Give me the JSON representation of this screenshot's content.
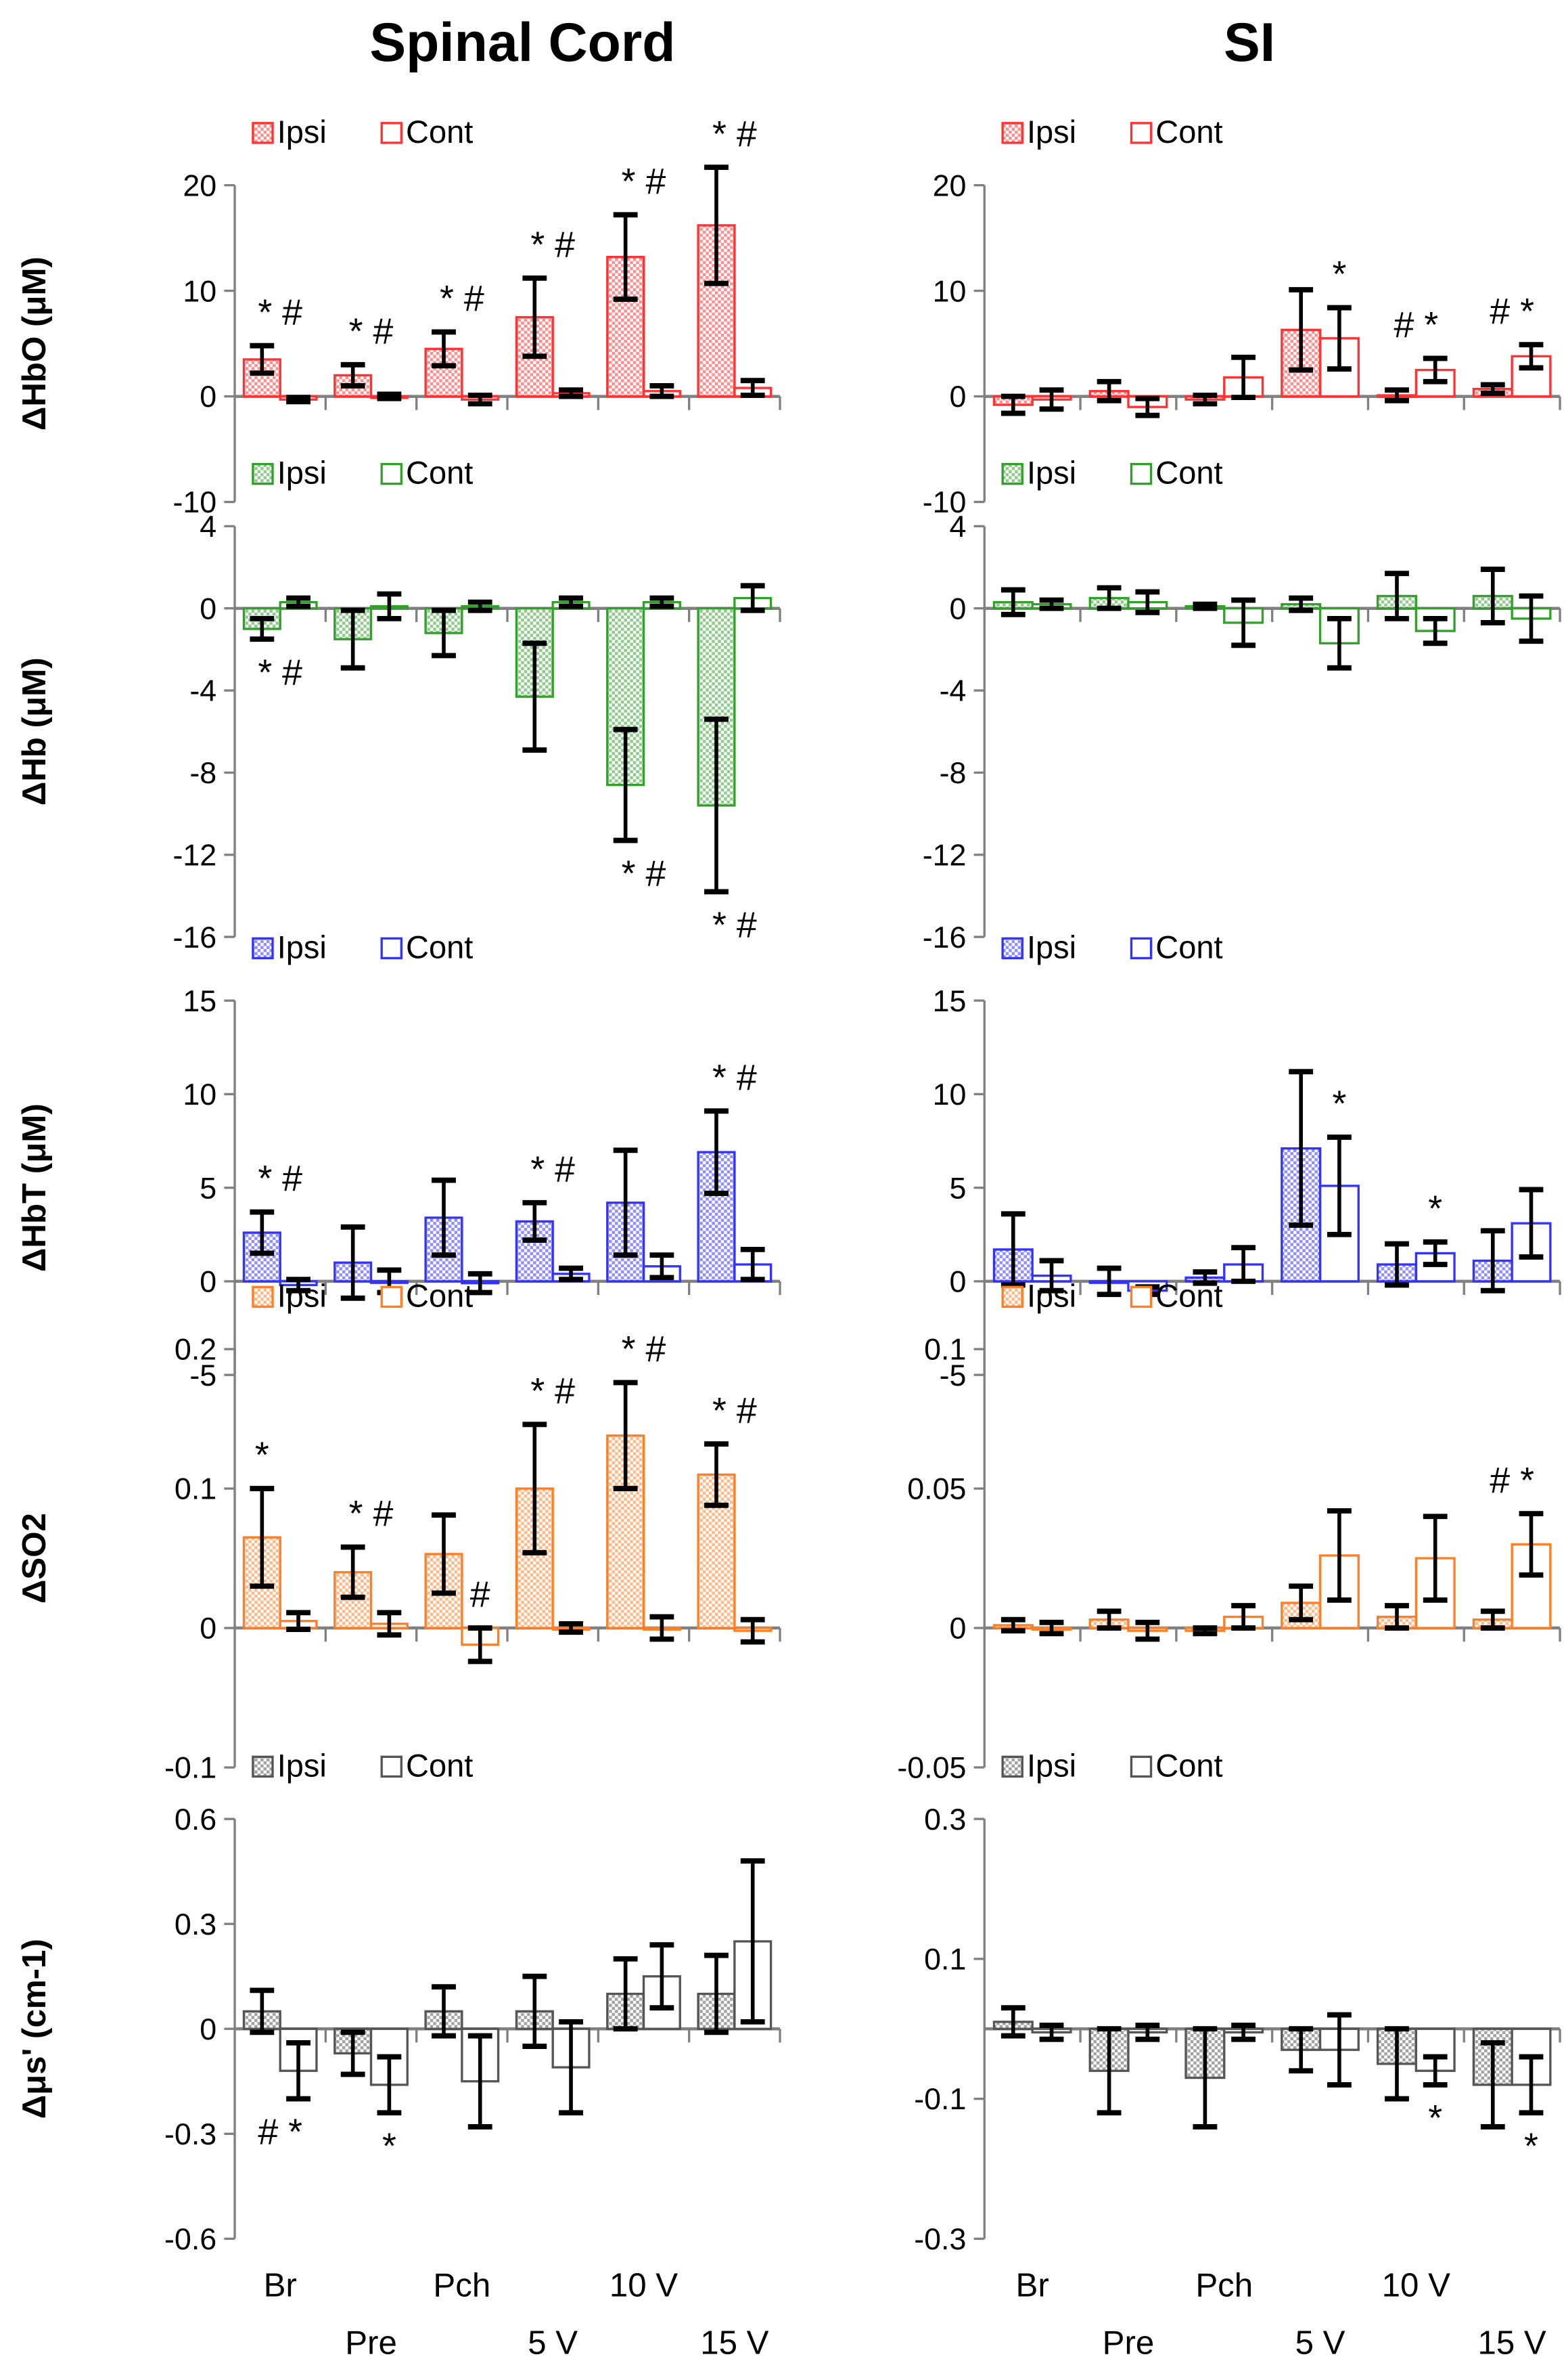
{
  "titles": {
    "left": "Spinal Cord",
    "right": "SI"
  },
  "legend": {
    "ipsi": "Ipsi",
    "cont": "Cont"
  },
  "categories": [
    "Br",
    "Pre",
    "Pch",
    "5 V",
    "10 V",
    "15 V"
  ],
  "colors": {
    "hbo": "#ff3333",
    "hb": "#33a02c",
    "hbt": "#3333ff",
    "so2": "#ff7f27",
    "mus": "#555555",
    "error": "#000000",
    "axis": "#808080"
  },
  "chart_data": [
    {
      "type": "bar",
      "id": "hbo-sc",
      "region": "Spinal Cord",
      "ylabel": "ΔHbO (μM)",
      "color_key": "hbo",
      "ylim": [
        -10,
        20
      ],
      "yticks": [
        20,
        10,
        0,
        -10
      ],
      "tick_labels": [
        "20",
        "10",
        "0",
        "-10"
      ],
      "categories": [
        "Br",
        "Pre",
        "Pch",
        "5 V",
        "10 V",
        "15 V"
      ],
      "series": [
        {
          "name": "Ipsi",
          "values": [
            3.5,
            2.0,
            4.5,
            7.5,
            13.2,
            16.2
          ],
          "errors": [
            1.3,
            1.0,
            1.6,
            3.7,
            4.0,
            5.5
          ]
        },
        {
          "name": "Cont",
          "values": [
            -0.3,
            0.0,
            -0.3,
            0.3,
            0.5,
            0.8
          ],
          "errors": [
            0.2,
            0.2,
            0.4,
            0.3,
            0.5,
            0.7
          ]
        }
      ],
      "annotations": [
        {
          "group": 0,
          "text": "* #",
          "pos": "above"
        },
        {
          "group": 1,
          "text": "* #",
          "pos": "above"
        },
        {
          "group": 2,
          "text": "* #",
          "pos": "above"
        },
        {
          "group": 3,
          "text": "* #",
          "pos": "above"
        },
        {
          "group": 4,
          "text": "* #",
          "pos": "above"
        },
        {
          "group": 5,
          "text": "* #",
          "pos": "above"
        }
      ]
    },
    {
      "type": "bar",
      "id": "hbo-si",
      "region": "SI",
      "ylabel": "",
      "color_key": "hbo",
      "ylim": [
        -10,
        20
      ],
      "yticks": [
        20,
        10,
        0,
        -10
      ],
      "tick_labels": [
        "20",
        "10",
        "0",
        "-10"
      ],
      "categories": [
        "Br",
        "Pre",
        "Pch",
        "5 V",
        "10 V",
        "15 V"
      ],
      "series": [
        {
          "name": "Ipsi",
          "values": [
            -0.8,
            0.5,
            -0.3,
            6.3,
            0.1,
            0.7
          ],
          "errors": [
            0.8,
            0.9,
            0.4,
            3.8,
            0.5,
            0.4
          ]
        },
        {
          "name": "Cont",
          "values": [
            -0.3,
            -1.0,
            1.8,
            5.5,
            2.5,
            3.8
          ],
          "errors": [
            0.9,
            0.8,
            1.9,
            2.9,
            1.1,
            1.1
          ]
        }
      ],
      "annotations": [
        {
          "group": 3,
          "text": "*",
          "pos": "above-cont"
        },
        {
          "group": 4,
          "text": "# *",
          "pos": "above"
        },
        {
          "group": 5,
          "text": "# *",
          "pos": "above"
        }
      ]
    },
    {
      "type": "bar",
      "id": "hb-sc",
      "region": "Spinal Cord",
      "ylabel": "ΔHb (μM)",
      "color_key": "hb",
      "ylim": [
        -16,
        4
      ],
      "yticks": [
        4,
        0,
        -4,
        -8,
        -12,
        -16
      ],
      "tick_labels": [
        "4",
        "0",
        "-4",
        "-8",
        "-12",
        "-16"
      ],
      "categories": [
        "Br",
        "Pre",
        "Pch",
        "5 V",
        "10 V",
        "15 V"
      ],
      "series": [
        {
          "name": "Ipsi",
          "values": [
            -1.0,
            -1.5,
            -1.2,
            -4.3,
            -8.6,
            -9.6
          ],
          "errors": [
            0.5,
            1.4,
            1.1,
            2.6,
            2.7,
            4.2
          ]
        },
        {
          "name": "Cont",
          "values": [
            0.3,
            0.1,
            0.1,
            0.3,
            0.3,
            0.5
          ],
          "errors": [
            0.2,
            0.6,
            0.2,
            0.2,
            0.2,
            0.6
          ]
        }
      ],
      "annotations": [
        {
          "group": 0,
          "text": "* #",
          "pos": "below"
        },
        {
          "group": 4,
          "text": "* #",
          "pos": "below"
        },
        {
          "group": 5,
          "text": "* #",
          "pos": "below"
        }
      ]
    },
    {
      "type": "bar",
      "id": "hb-si",
      "region": "SI",
      "ylabel": "",
      "color_key": "hb",
      "ylim": [
        -16,
        4
      ],
      "yticks": [
        4,
        0,
        -4,
        -8,
        -12,
        -16
      ],
      "tick_labels": [
        "4",
        "0",
        "-4",
        "-8",
        "-12",
        "-16"
      ],
      "categories": [
        "Br",
        "Pre",
        "Pch",
        "5 V",
        "10 V",
        "15 V"
      ],
      "series": [
        {
          "name": "Ipsi",
          "values": [
            0.3,
            0.5,
            0.1,
            0.2,
            0.6,
            0.6
          ],
          "errors": [
            0.6,
            0.5,
            0.1,
            0.3,
            1.1,
            1.3
          ]
        },
        {
          "name": "Cont",
          "values": [
            0.2,
            0.3,
            -0.7,
            -1.7,
            -1.1,
            -0.5
          ],
          "errors": [
            0.2,
            0.5,
            1.1,
            1.2,
            0.6,
            1.1
          ]
        }
      ],
      "annotations": []
    },
    {
      "type": "bar",
      "id": "hbt-sc",
      "region": "Spinal Cord",
      "ylabel": "ΔHbT (μM)",
      "color_key": "hbt",
      "ylim": [
        -5,
        15
      ],
      "yticks": [
        15,
        10,
        5,
        0,
        -5
      ],
      "tick_labels": [
        "15",
        "10",
        "5",
        "0",
        "-5"
      ],
      "categories": [
        "Br",
        "Pre",
        "Pch",
        "5 V",
        "10 V",
        "15 V"
      ],
      "series": [
        {
          "name": "Ipsi",
          "values": [
            2.6,
            1.0,
            3.4,
            3.2,
            4.2,
            6.9
          ],
          "errors": [
            1.1,
            1.9,
            2.0,
            1.0,
            2.8,
            2.2
          ]
        },
        {
          "name": "Cont",
          "values": [
            -0.2,
            0.0,
            -0.1,
            0.4,
            0.8,
            0.9
          ],
          "errors": [
            0.3,
            0.6,
            0.5,
            0.3,
            0.6,
            0.8
          ]
        }
      ],
      "annotations": [
        {
          "group": 0,
          "text": "* #",
          "pos": "above"
        },
        {
          "group": 3,
          "text": "* #",
          "pos": "above"
        },
        {
          "group": 5,
          "text": "* #",
          "pos": "above"
        }
      ]
    },
    {
      "type": "bar",
      "id": "hbt-si",
      "region": "SI",
      "ylabel": "",
      "color_key": "hbt",
      "ylim": [
        -5,
        15
      ],
      "yticks": [
        15,
        10,
        5,
        0,
        -5
      ],
      "tick_labels": [
        "15",
        "10",
        "5",
        "0",
        "-5"
      ],
      "categories": [
        "Br",
        "Pre",
        "Pch",
        "5 V",
        "10 V",
        "15 V"
      ],
      "series": [
        {
          "name": "Ipsi",
          "values": [
            1.7,
            0.0,
            0.2,
            7.1,
            0.9,
            1.1
          ],
          "errors": [
            1.9,
            0.7,
            0.3,
            4.1,
            1.1,
            1.6
          ]
        },
        {
          "name": "Cont",
          "values": [
            0.3,
            -0.5,
            0.9,
            5.1,
            1.5,
            3.1
          ],
          "errors": [
            0.8,
            0.2,
            0.9,
            2.6,
            0.6,
            1.8
          ]
        }
      ],
      "annotations": [
        {
          "group": 3,
          "text": "*",
          "pos": "above-cont"
        },
        {
          "group": 4,
          "text": "*",
          "pos": "above-cont"
        }
      ]
    },
    {
      "type": "bar",
      "id": "so2-sc",
      "region": "Spinal Cord",
      "ylabel": "ΔSO2",
      "color_key": "so2",
      "ylim": [
        -0.1,
        0.2
      ],
      "yticks": [
        0.2,
        0.1,
        0,
        -0.1
      ],
      "tick_labels": [
        "0.2",
        "0.1",
        "0",
        "-0.1"
      ],
      "categories": [
        "Br",
        "Pre",
        "Pch",
        "5 V",
        "10 V",
        "15 V"
      ],
      "series": [
        {
          "name": "Ipsi",
          "values": [
            0.065,
            0.04,
            0.053,
            0.1,
            0.138,
            0.11
          ],
          "errors": [
            0.035,
            0.018,
            0.028,
            0.046,
            0.038,
            0.022
          ]
        },
        {
          "name": "Cont",
          "values": [
            0.005,
            0.003,
            -0.012,
            0.0,
            0.0,
            -0.002
          ],
          "errors": [
            0.006,
            0.008,
            0.012,
            0.003,
            0.008,
            0.008
          ]
        }
      ],
      "annotations": [
        {
          "group": 0,
          "text": "*",
          "pos": "above-ipsi"
        },
        {
          "group": 1,
          "text": "* #",
          "pos": "above"
        },
        {
          "group": 2,
          "text": "#",
          "pos": "above-cont"
        },
        {
          "group": 3,
          "text": "* #",
          "pos": "above"
        },
        {
          "group": 4,
          "text": "* #",
          "pos": "above"
        },
        {
          "group": 5,
          "text": "* #",
          "pos": "above"
        }
      ]
    },
    {
      "type": "bar",
      "id": "so2-si",
      "region": "SI",
      "ylabel": "",
      "color_key": "so2",
      "ylim": [
        -0.05,
        0.1
      ],
      "yticks": [
        0.1,
        0.05,
        0,
        -0.05
      ],
      "tick_labels": [
        "0.1",
        "0.05",
        "0",
        "-0.05"
      ],
      "categories": [
        "Br",
        "Pre",
        "Pch",
        "5 V",
        "10 V",
        "15 V"
      ],
      "series": [
        {
          "name": "Ipsi",
          "values": [
            0.001,
            0.003,
            -0.001,
            0.009,
            0.004,
            0.003
          ],
          "errors": [
            0.002,
            0.003,
            0.001,
            0.006,
            0.004,
            0.003
          ]
        },
        {
          "name": "Cont",
          "values": [
            0.0,
            -0.001,
            0.004,
            0.026,
            0.025,
            0.03
          ],
          "errors": [
            0.002,
            0.003,
            0.004,
            0.016,
            0.015,
            0.011
          ]
        }
      ],
      "annotations": [
        {
          "group": 5,
          "text": "# *",
          "pos": "above"
        }
      ]
    },
    {
      "type": "bar",
      "id": "mus-sc",
      "region": "Spinal Cord",
      "ylabel": "Δμs' (cm-1)",
      "color_key": "mus",
      "ylim": [
        -0.6,
        0.6
      ],
      "yticks": [
        0.6,
        0.3,
        0,
        -0.3,
        -0.6
      ],
      "tick_labels": [
        "0.6",
        "0.3",
        "0",
        "-0.3",
        "-0.6"
      ],
      "categories": [
        "Br",
        "Pre",
        "Pch",
        "5 V",
        "10 V",
        "15 V"
      ],
      "series": [
        {
          "name": "Ipsi",
          "values": [
            0.05,
            -0.07,
            0.05,
            0.05,
            0.1,
            0.1
          ],
          "errors": [
            0.06,
            0.06,
            0.07,
            0.1,
            0.1,
            0.11
          ]
        },
        {
          "name": "Cont",
          "values": [
            -0.12,
            -0.16,
            -0.15,
            -0.11,
            0.15,
            0.25
          ],
          "errors": [
            0.08,
            0.08,
            0.13,
            0.13,
            0.09,
            0.23
          ]
        }
      ],
      "annotations": [
        {
          "group": 0,
          "text": "# *",
          "pos": "below"
        },
        {
          "group": 1,
          "text": "*",
          "pos": "below-cont"
        }
      ]
    },
    {
      "type": "bar",
      "id": "mus-si",
      "region": "SI",
      "ylabel": "",
      "color_key": "mus",
      "ylim": [
        -0.3,
        0.3
      ],
      "yticks": [
        0.3,
        0.1,
        -0.1,
        -0.3
      ],
      "tick_labels": [
        "0.3",
        "0.1",
        "-0.1",
        "-0.3"
      ],
      "categories": [
        "Br",
        "Pre",
        "Pch",
        "5 V",
        "10 V",
        "15 V"
      ],
      "series": [
        {
          "name": "Ipsi",
          "values": [
            0.01,
            -0.06,
            -0.07,
            -0.03,
            -0.05,
            -0.08
          ],
          "errors": [
            0.02,
            0.06,
            0.07,
            0.03,
            0.05,
            0.06
          ]
        },
        {
          "name": "Cont",
          "values": [
            -0.005,
            -0.005,
            -0.005,
            -0.03,
            -0.06,
            -0.08
          ],
          "errors": [
            0.01,
            0.01,
            0.01,
            0.05,
            0.02,
            0.04
          ]
        }
      ],
      "annotations": [
        {
          "group": 4,
          "text": "*",
          "pos": "below-cont"
        },
        {
          "group": 5,
          "text": "*",
          "pos": "below-cont"
        }
      ]
    }
  ]
}
